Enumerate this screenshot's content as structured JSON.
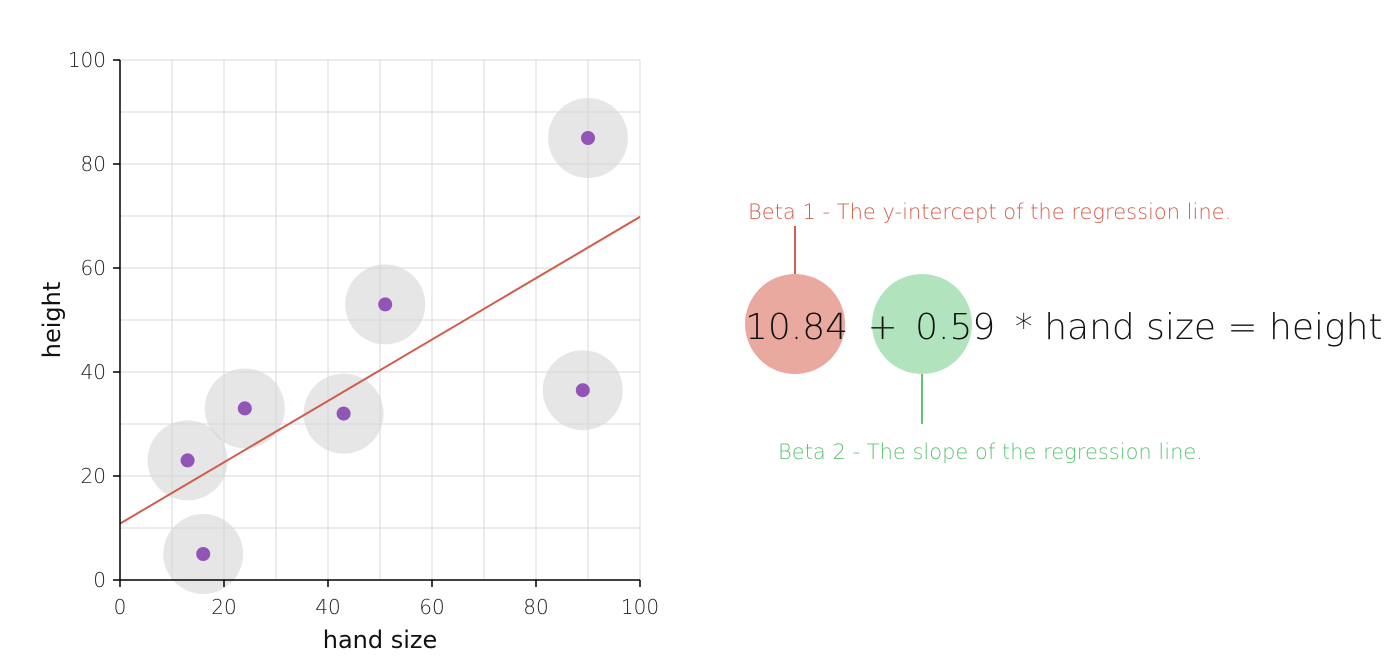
{
  "chart_data": {
    "type": "scatter",
    "xlabel": "hand size",
    "ylabel": "height",
    "xlim": [
      0,
      100
    ],
    "ylim": [
      0,
      100
    ],
    "x_ticks": [
      0,
      20,
      40,
      60,
      80,
      100
    ],
    "y_ticks": [
      0,
      20,
      40,
      60,
      80,
      100
    ],
    "grid": true,
    "points": [
      {
        "x": 13,
        "y": 23
      },
      {
        "x": 16,
        "y": 5
      },
      {
        "x": 24,
        "y": 33
      },
      {
        "x": 43,
        "y": 32
      },
      {
        "x": 51,
        "y": 53
      },
      {
        "x": 89,
        "y": 36.5
      },
      {
        "x": 90,
        "y": 85
      }
    ],
    "regression": {
      "intercept": 10.84,
      "slope": 0.59
    },
    "colors": {
      "point": "#9155b8",
      "halo": "#d6d6d6",
      "line": "#cf5d4a"
    }
  },
  "equation": {
    "beta1": "10.84",
    "plus": "+",
    "beta2": "0.59",
    "rest": "* hand size = height",
    "beta1_color": "#e9a99f",
    "beta2_color": "#b1e4bd",
    "beta1_note": "Beta 1 - The y-intercept of the regression line.",
    "beta2_note": "Beta 2 - The slope of the regression line.",
    "beta1_note_color": "#d2604e",
    "beta2_note_color": "#5ec476"
  }
}
